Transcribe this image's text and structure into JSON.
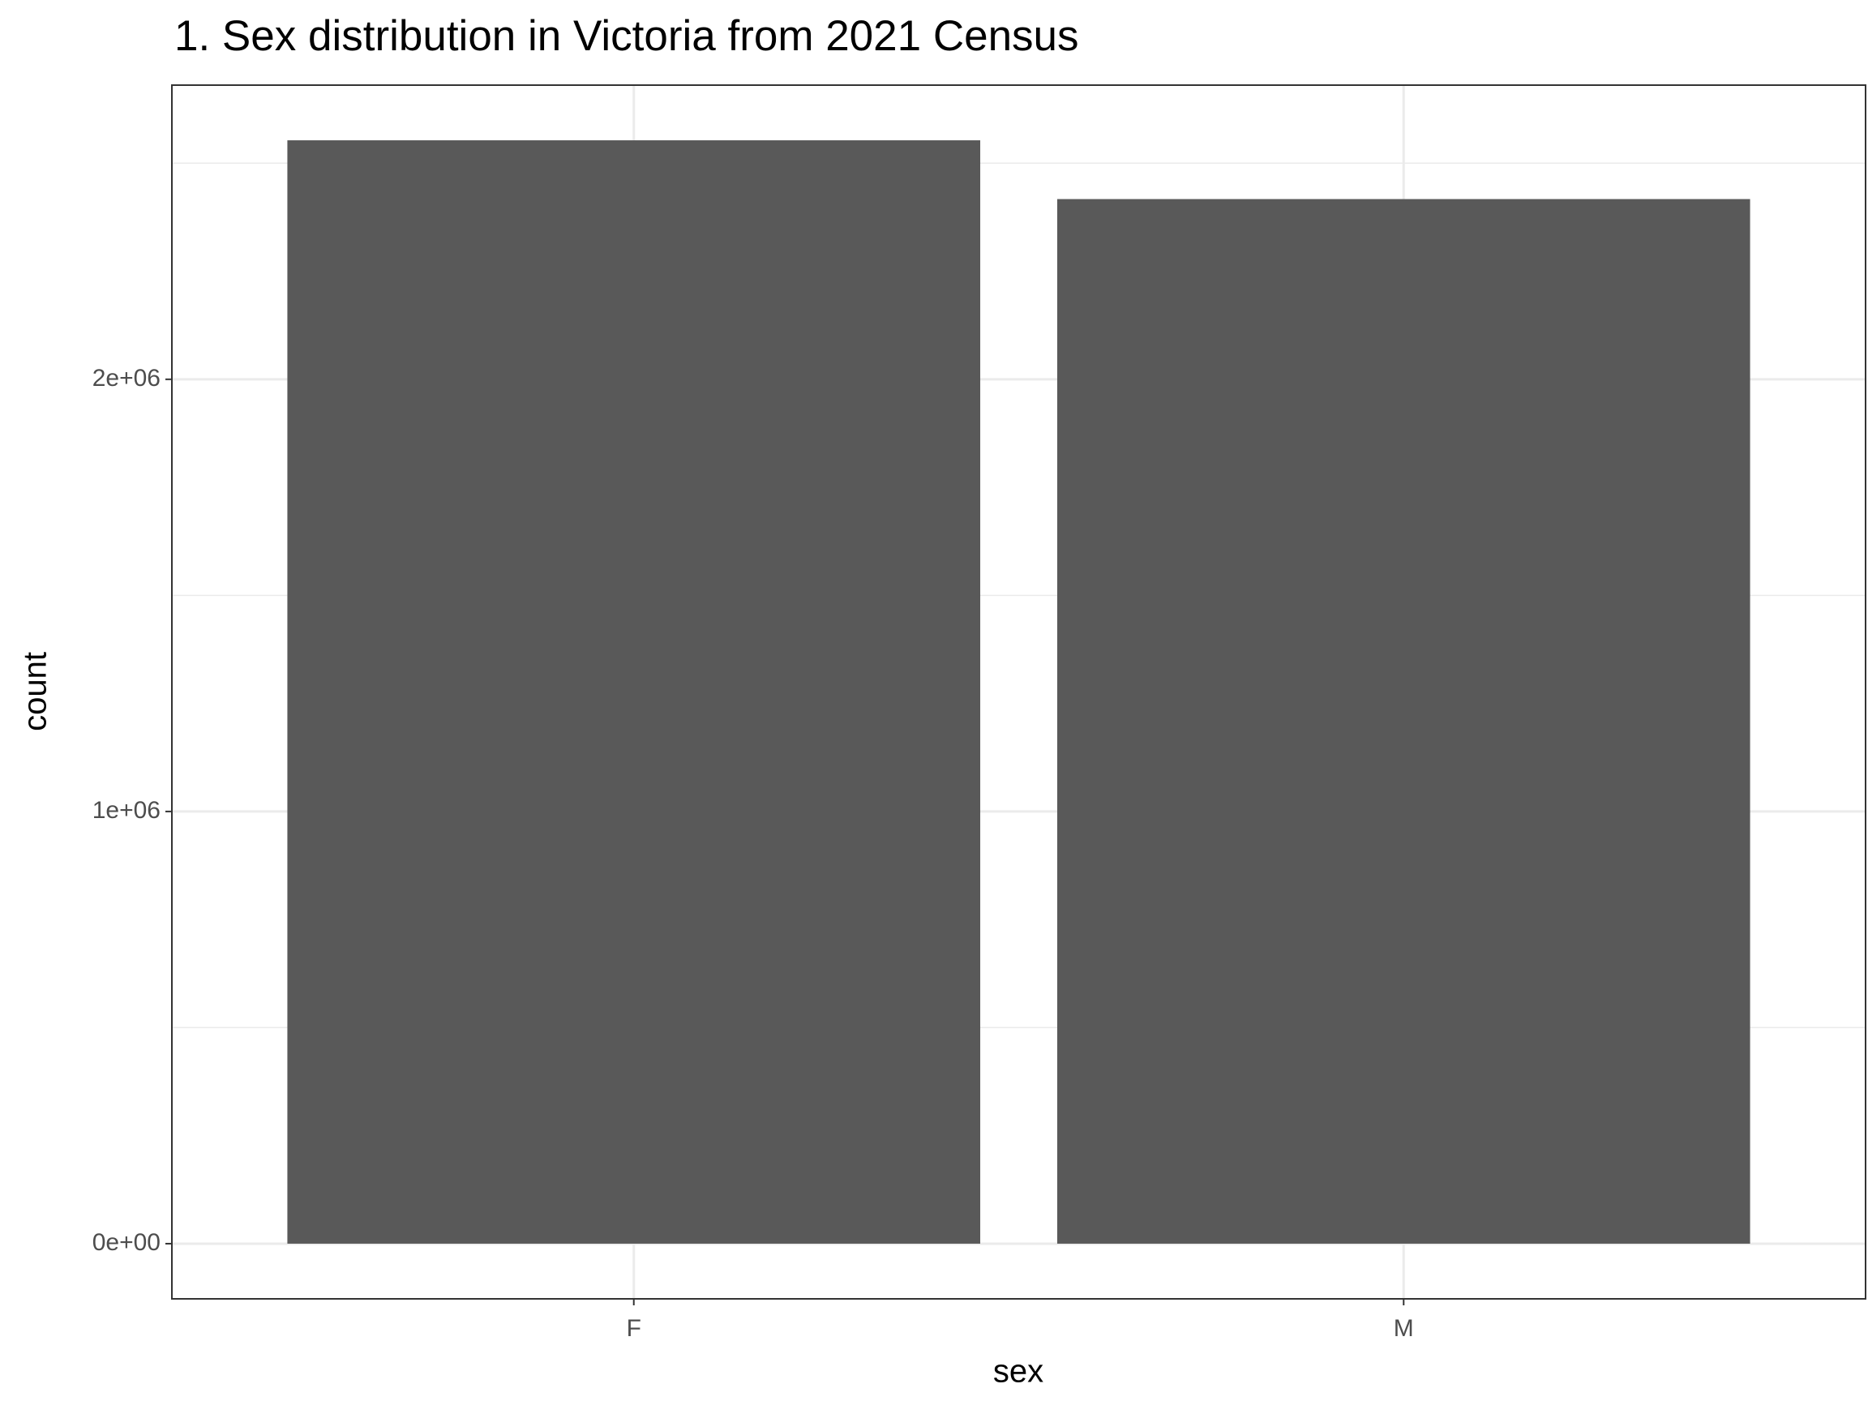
{
  "chart_data": {
    "type": "bar",
    "title": "1. Sex distribution in Victoria from 2021 Census",
    "x_label": "sex",
    "y_label": "count",
    "categories": [
      "F",
      "M"
    ],
    "values": [
      2553000,
      2417000
    ],
    "color": "#595959",
    "ylim": [
      -127650,
      2680650
    ],
    "yticks": [
      {
        "value": 0,
        "label": "0e+00"
      },
      {
        "value": 1000000,
        "label": "1e+06"
      },
      {
        "value": 2000000,
        "label": "2e+06"
      }
    ],
    "minor_yticks": [
      500000,
      1500000,
      2500000
    ],
    "grid": true
  }
}
